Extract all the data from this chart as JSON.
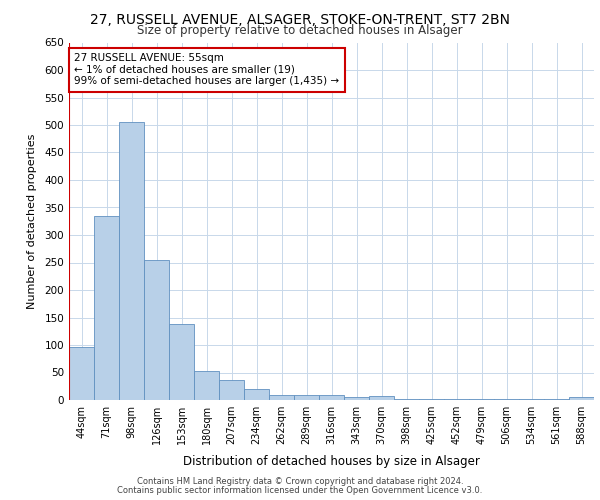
{
  "title_line1": "27, RUSSELL AVENUE, ALSAGER, STOKE-ON-TRENT, ST7 2BN",
  "title_line2": "Size of property relative to detached houses in Alsager",
  "xlabel": "Distribution of detached houses by size in Alsager",
  "ylabel": "Number of detached properties",
  "categories": [
    "44sqm",
    "71sqm",
    "98sqm",
    "126sqm",
    "153sqm",
    "180sqm",
    "207sqm",
    "234sqm",
    "262sqm",
    "289sqm",
    "316sqm",
    "343sqm",
    "370sqm",
    "398sqm",
    "425sqm",
    "452sqm",
    "479sqm",
    "506sqm",
    "534sqm",
    "561sqm",
    "588sqm"
  ],
  "values": [
    97,
    335,
    505,
    255,
    138,
    53,
    36,
    20,
    9,
    10,
    10,
    5,
    8,
    2,
    2,
    2,
    2,
    2,
    2,
    2,
    5
  ],
  "bar_color": "#b8d0e8",
  "bar_edge_color": "#6090c0",
  "highlight_line_color": "#cc0000",
  "annotation_text": "27 RUSSELL AVENUE: 55sqm\n← 1% of detached houses are smaller (19)\n99% of semi-detached houses are larger (1,435) →",
  "annotation_box_color": "#ffffff",
  "annotation_box_edge": "#cc0000",
  "grid_color": "#c8d8ea",
  "background_color": "#ffffff",
  "ylim": [
    0,
    650
  ],
  "yticks": [
    0,
    50,
    100,
    150,
    200,
    250,
    300,
    350,
    400,
    450,
    500,
    550,
    600,
    650
  ],
  "footer_line1": "Contains HM Land Registry data © Crown copyright and database right 2024.",
  "footer_line2": "Contains public sector information licensed under the Open Government Licence v3.0."
}
